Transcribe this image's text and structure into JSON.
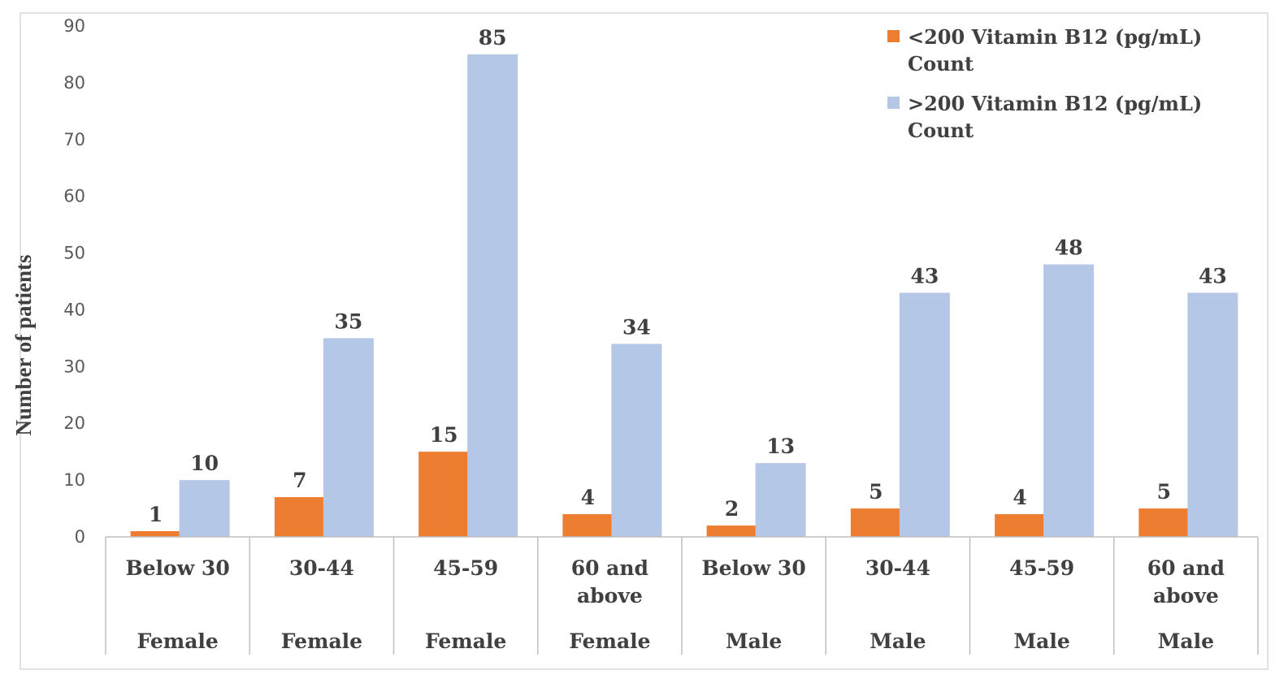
{
  "chart_data": {
    "type": "bar",
    "ylabel": "Number of patients",
    "ylim": [
      0,
      90
    ],
    "yticks": [
      0,
      10,
      20,
      30,
      40,
      50,
      60,
      70,
      80,
      90
    ],
    "grid": false,
    "legend_position": "top-right",
    "categories": [
      {
        "age": [
          "Below 30"
        ],
        "sex": "Female"
      },
      {
        "age": [
          "30-44"
        ],
        "sex": "Female"
      },
      {
        "age": [
          "45-59"
        ],
        "sex": "Female"
      },
      {
        "age": [
          "60 and",
          "above"
        ],
        "sex": "Female"
      },
      {
        "age": [
          "Below 30"
        ],
        "sex": "Male"
      },
      {
        "age": [
          "30-44"
        ],
        "sex": "Male"
      },
      {
        "age": [
          "45-59"
        ],
        "sex": "Male"
      },
      {
        "age": [
          "60 and",
          "above"
        ],
        "sex": "Male"
      }
    ],
    "series": [
      {
        "name_lines": [
          "<200 Vitamin B12 (pg/mL)",
          "Count"
        ],
        "color": "#ED7D31",
        "values": [
          1,
          7,
          15,
          4,
          2,
          5,
          4,
          5
        ]
      },
      {
        "name_lines": [
          ">200 Vitamin B12 (pg/mL)",
          "Count"
        ],
        "color": "#B4C7E7",
        "values": [
          10,
          35,
          85,
          34,
          13,
          43,
          48,
          43
        ]
      }
    ]
  }
}
